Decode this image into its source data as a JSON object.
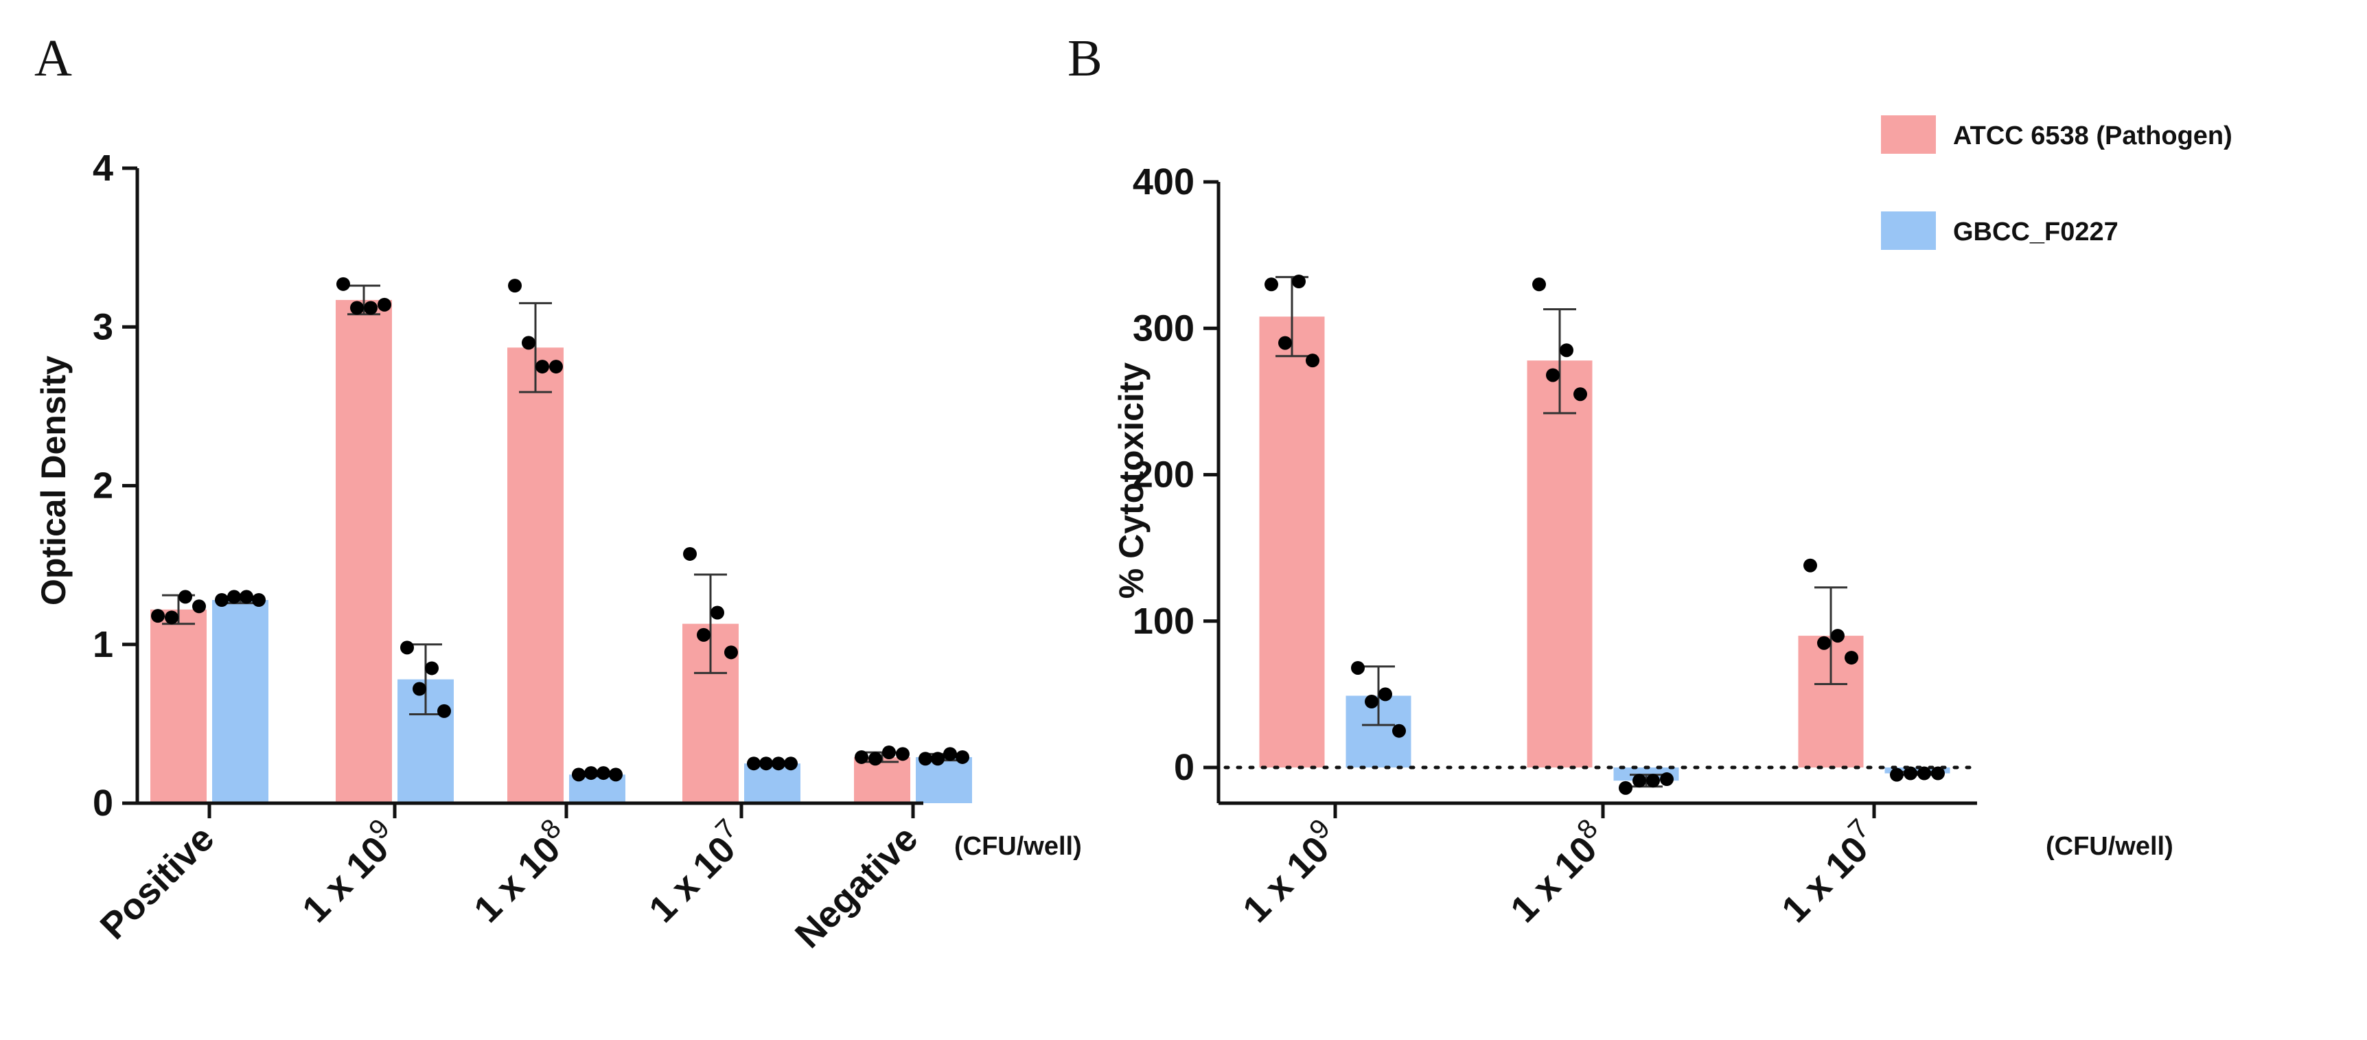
{
  "figure": {
    "panel_a_letter": "A",
    "panel_b_letter": "B"
  },
  "colors": {
    "pathogen": "#f7a3a3",
    "gbcc": "#99c5f5",
    "error": "#333333",
    "dot": "#000000"
  },
  "legend": {
    "items": [
      {
        "label": "ATCC 6538 (Pathogen)",
        "color": "#f7a3a3"
      },
      {
        "label": "GBCC_F0227",
        "color": "#99c5f5"
      }
    ]
  },
  "chart_data": [
    {
      "panel": "A",
      "type": "bar",
      "title": "",
      "ylabel": "Optical Density",
      "xlabel": "(CFU/well)",
      "ylim": [
        0,
        4
      ],
      "yticks": [
        "0",
        "1",
        "2",
        "3",
        "4"
      ],
      "categories": [
        {
          "base": "Positive",
          "sup": ""
        },
        {
          "base": "1 x 10",
          "sup": "9"
        },
        {
          "base": "1 x 10",
          "sup": "8"
        },
        {
          "base": "1 x 10",
          "sup": "7"
        },
        {
          "base": "Negative",
          "sup": ""
        }
      ],
      "series": [
        {
          "name": "ATCC 6538 (Pathogen)",
          "values": [
            1.22,
            3.17,
            2.87,
            1.13,
            0.29
          ],
          "err_low": [
            1.13,
            3.08,
            2.59,
            0.82,
            0.26
          ],
          "err_high": [
            1.31,
            3.26,
            3.15,
            1.44,
            0.32
          ],
          "points": [
            [
              1.18,
              1.3,
              1.17,
              1.24
            ],
            [
              3.27,
              3.12,
              3.12,
              3.14
            ],
            [
              3.26,
              2.75,
              2.9,
              2.75
            ],
            [
              1.57,
              1.2,
              1.06,
              0.95
            ],
            [
              0.29,
              0.32,
              0.28,
              0.31
            ]
          ]
        },
        {
          "name": "GBCC_F0227",
          "values": [
            1.28,
            0.78,
            0.18,
            0.25,
            0.29
          ],
          "err_low": [
            1.26,
            0.56,
            0.17,
            0.24,
            0.27
          ],
          "err_high": [
            1.3,
            1.0,
            0.19,
            0.26,
            0.31
          ],
          "points": [
            [
              1.28,
              1.3,
              1.3,
              1.28
            ],
            [
              0.98,
              0.85,
              0.72,
              0.58
            ],
            [
              0.18,
              0.19,
              0.19,
              0.18
            ],
            [
              0.25,
              0.25,
              0.25,
              0.25
            ],
            [
              0.28,
              0.31,
              0.28,
              0.29
            ]
          ]
        }
      ]
    },
    {
      "panel": "B",
      "type": "bar",
      "title": "",
      "ylabel": "% Cytotoxicity",
      "xlabel": "(CFU/well)",
      "ylim": [
        -20,
        400
      ],
      "yticks": [
        "0",
        "100",
        "200",
        "300",
        "400"
      ],
      "reference_line": 0,
      "categories": [
        {
          "base": "1 x 10",
          "sup": "9"
        },
        {
          "base": "1 x 10",
          "sup": "8"
        },
        {
          "base": "1 x 10",
          "sup": "7"
        }
      ],
      "series": [
        {
          "name": "ATCC 6538 (Pathogen)",
          "values": [
            308,
            278,
            90
          ],
          "err_low": [
            281,
            242,
            57
          ],
          "err_high": [
            335,
            313,
            123
          ],
          "points": [
            [
              330,
              332,
              290,
              278
            ],
            [
              330,
              285,
              268,
              255
            ],
            [
              138,
              90,
              85,
              75
            ]
          ]
        },
        {
          "name": "GBCC_F0227",
          "values": [
            49,
            -9,
            -4
          ],
          "err_low": [
            29,
            -13,
            -5
          ],
          "err_high": [
            69,
            -5,
            -3
          ],
          "points": [
            [
              68,
              50,
              45,
              25
            ],
            [
              -14,
              -9,
              -9,
              -8
            ],
            [
              -5,
              -4,
              -4,
              -4
            ]
          ]
        }
      ]
    }
  ]
}
